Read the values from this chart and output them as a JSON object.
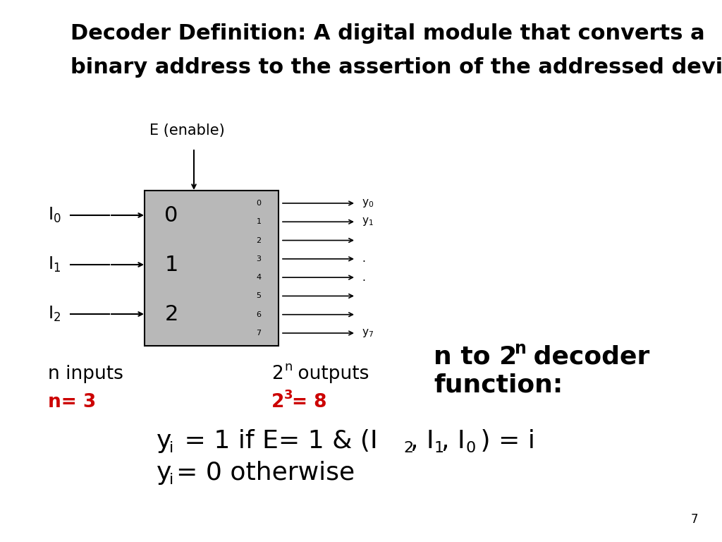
{
  "bg_color": "#ffffff",
  "black_color": "#000000",
  "red_color": "#cc0000",
  "box_color": "#b8b8b8",
  "title_line1": "Decoder Definition: A digital module that converts a",
  "title_line2": "binary address to the assertion of the addressed device",
  "enable_label": "E (enable)",
  "page_number": "7"
}
